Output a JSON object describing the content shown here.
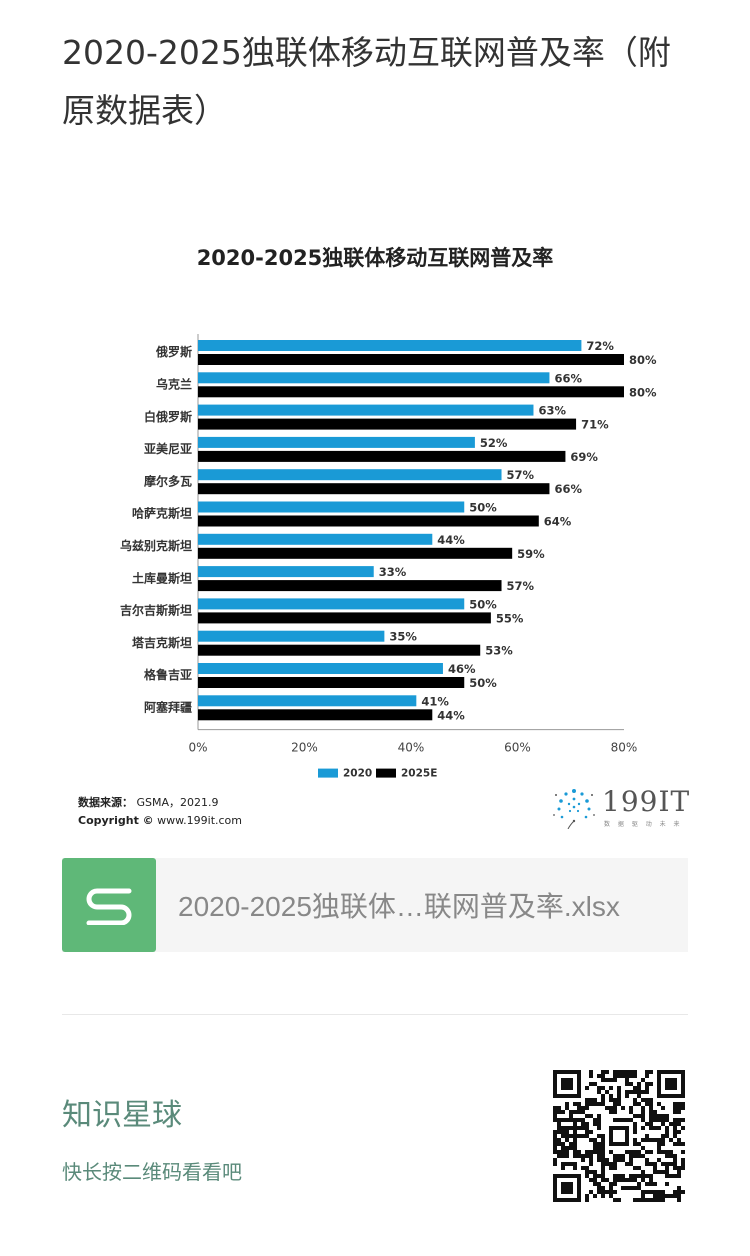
{
  "article": {
    "title": "2020-2025独联体移动互联网普及率（附原数据表）"
  },
  "chart_data": {
    "type": "bar",
    "orientation": "horizontal",
    "title": "2020-2025独联体移动互联网普及率",
    "categories": [
      "俄罗斯",
      "乌克兰",
      "白俄罗斯",
      "亚美尼亚",
      "摩尔多瓦",
      "哈萨克斯坦",
      "乌兹别克斯坦",
      "土库曼斯坦",
      "吉尔吉斯斯坦",
      "塔吉克斯坦",
      "格鲁吉亚",
      "阿塞拜疆"
    ],
    "series": [
      {
        "name": "2020",
        "color": "#1a9ad6",
        "values": [
          72,
          66,
          63,
          52,
          57,
          50,
          44,
          33,
          50,
          35,
          46,
          41
        ]
      },
      {
        "name": "2025E",
        "color": "#000000",
        "values": [
          80,
          80,
          71,
          69,
          66,
          64,
          59,
          57,
          55,
          53,
          50,
          44
        ]
      }
    ],
    "value_suffix": "%",
    "xlim": [
      0,
      80
    ],
    "xticks": [
      "0%",
      "20%",
      "40%",
      "60%",
      "80%"
    ],
    "grid": false,
    "legend": "bottom"
  },
  "chart_footer": {
    "source_label": "数据来源：",
    "source_value": "GSMA，2021.9",
    "copyright_label": "Copyright ©",
    "copyright_value": "www.199it.com",
    "brand_name": "199IT",
    "brand_slogan": "数 据 驱 动 未 来"
  },
  "attachment": {
    "file_name": "2020-2025独联体…联网普及率.xlsx",
    "icon": "spreadsheet-s-icon",
    "icon_color": "#5fb878"
  },
  "promo": {
    "title": "知识星球",
    "subtitle": "快长按二维码看看吧",
    "qr_icon": "qr-code-icon"
  }
}
